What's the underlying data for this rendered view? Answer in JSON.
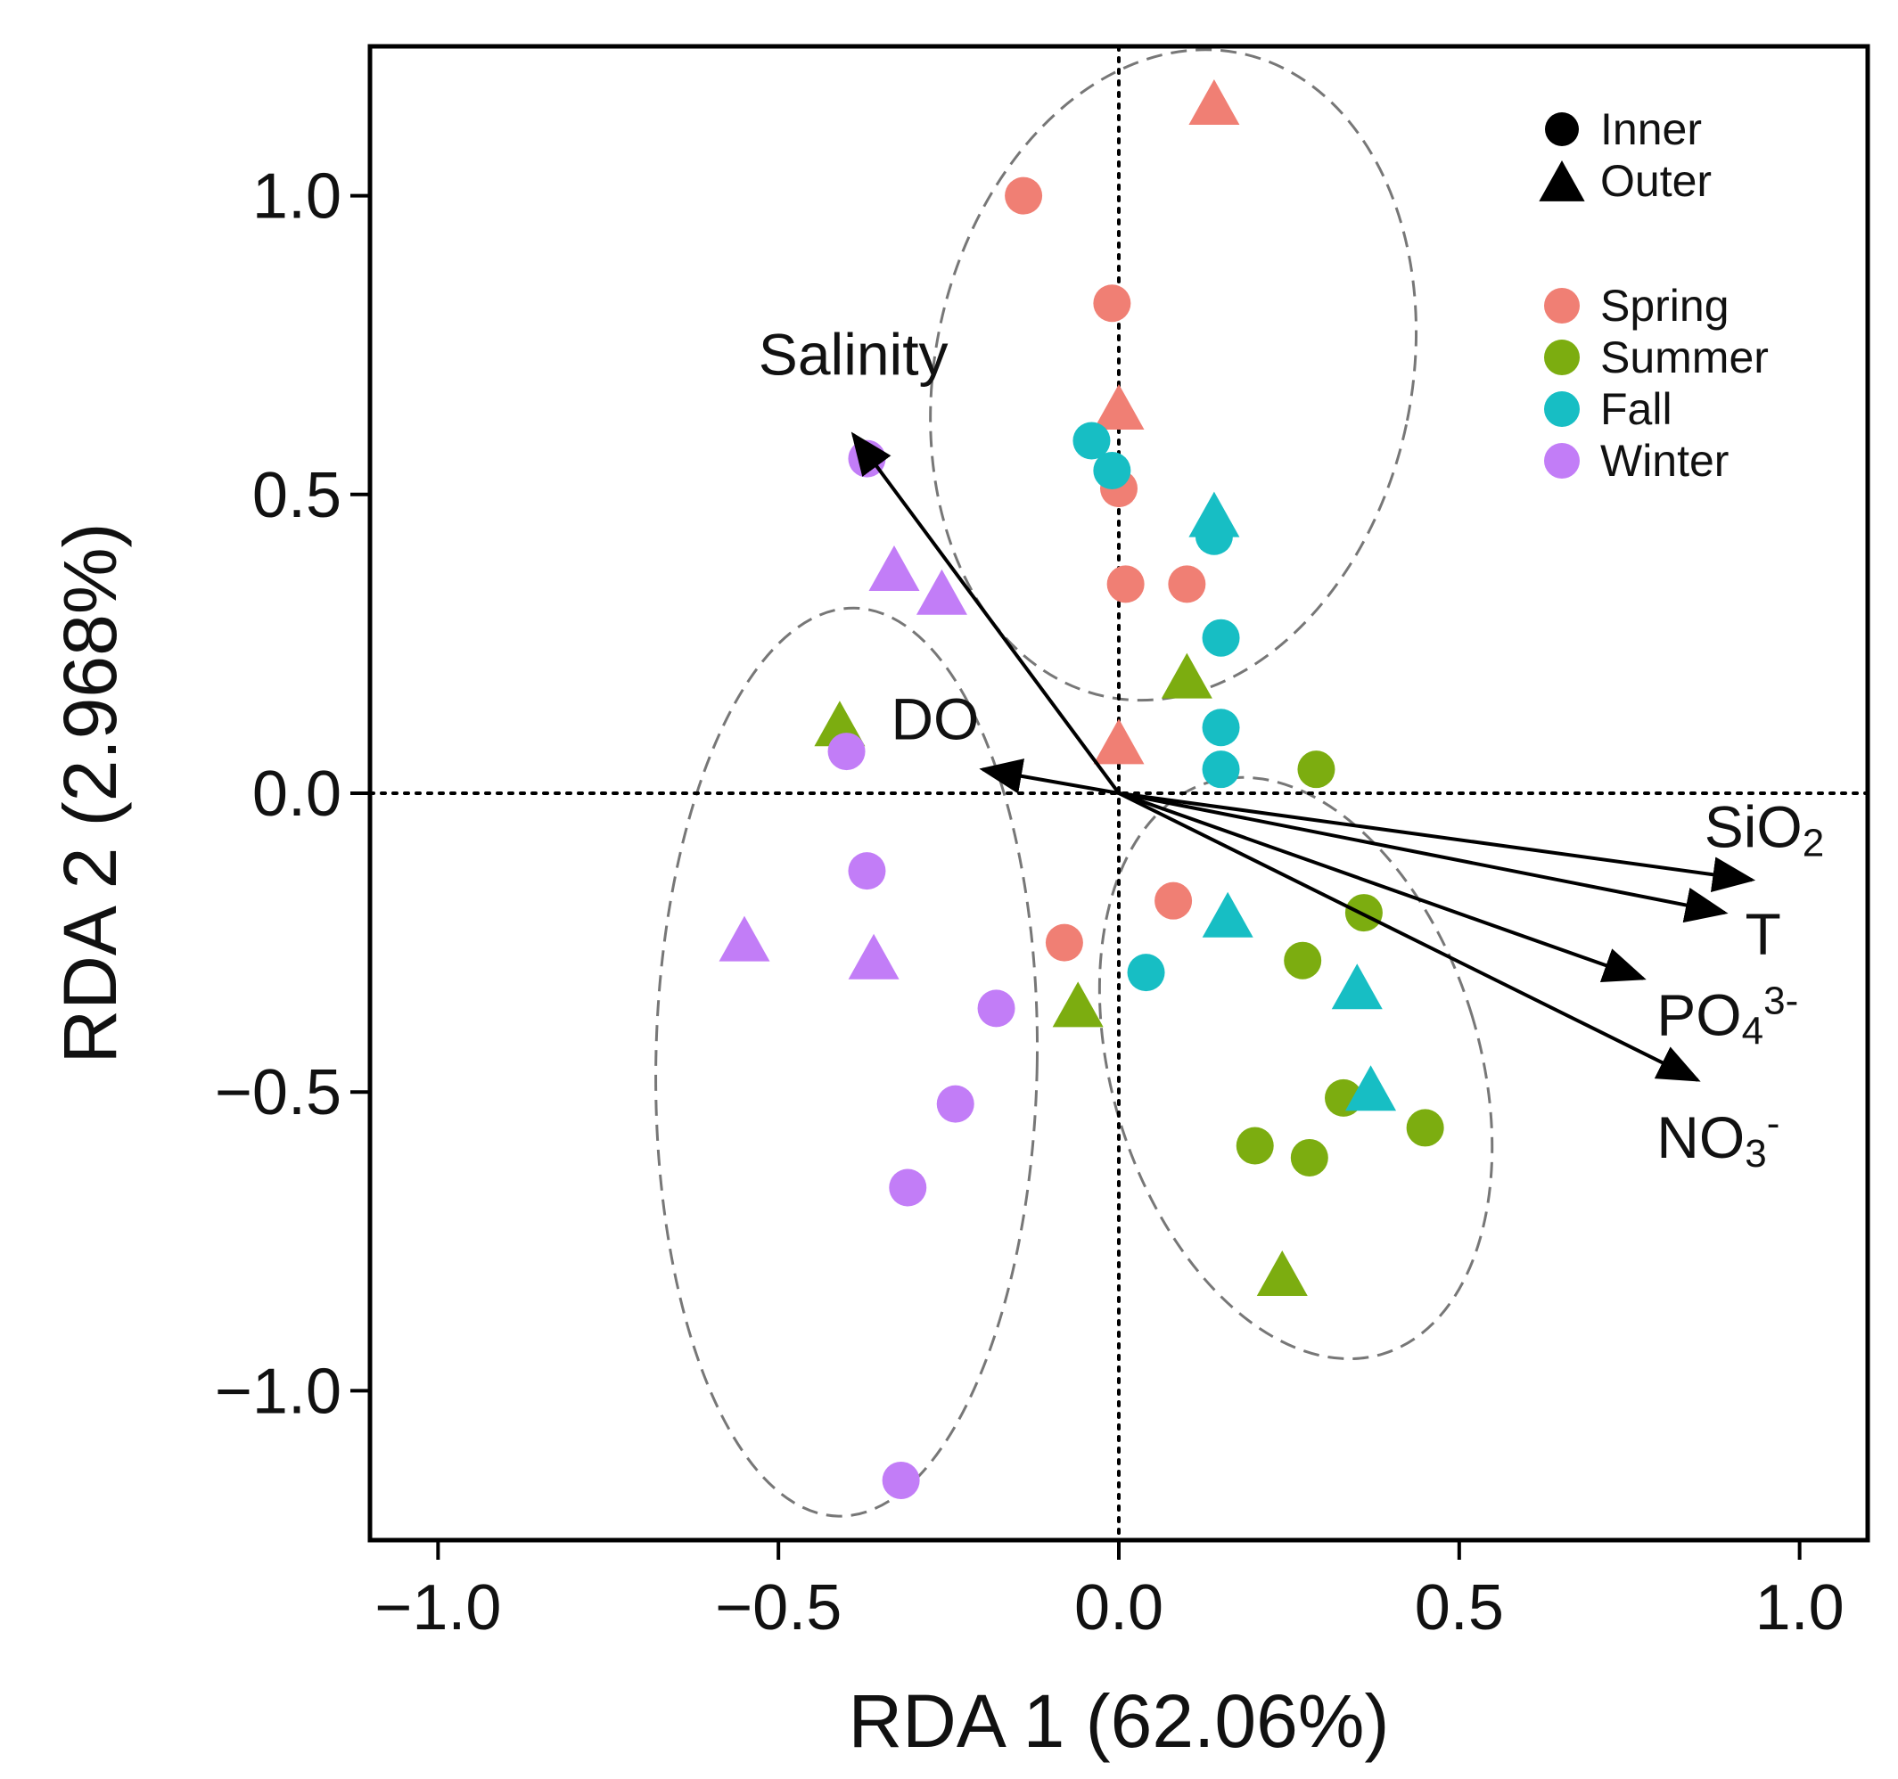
{
  "chart_data": {
    "type": "scatter",
    "title": "",
    "xlabel": "RDA 1 (62.06%)",
    "ylabel": "RDA 2 (2.968%)",
    "xlim": [
      -1.1,
      1.1
    ],
    "ylim": [
      -1.25,
      1.25
    ],
    "xticks": [
      -1.0,
      -0.5,
      0.0,
      0.5,
      1.0
    ],
    "yticks": [
      -1.0,
      -0.5,
      0.0,
      0.5,
      1.0
    ],
    "xtick_labels": [
      "−1.0",
      "−0.5",
      "0.0",
      "0.5",
      "1.0"
    ],
    "ytick_labels": [
      "−1.0",
      "−0.5",
      "0.0",
      "0.5",
      "1.0"
    ],
    "grid": false,
    "legend_placement": "top-right",
    "shape_legend": [
      {
        "label": "Inner",
        "shape": "circle"
      },
      {
        "label": "Outer",
        "shape": "triangle"
      }
    ],
    "season_legend": [
      {
        "label": "Spring",
        "color": "#F07F74"
      },
      {
        "label": "Summer",
        "color": "#7CAD10"
      },
      {
        "label": "Fall",
        "color": "#17BEC4"
      },
      {
        "label": "Winter",
        "color": "#C27DF7"
      }
    ],
    "points": [
      {
        "season": "Spring",
        "site": "Inner",
        "x": -0.14,
        "y": 1.0
      },
      {
        "season": "Spring",
        "site": "Inner",
        "x": -0.01,
        "y": 0.82
      },
      {
        "season": "Spring",
        "site": "Inner",
        "x": 0.0,
        "y": 0.51
      },
      {
        "season": "Spring",
        "site": "Inner",
        "x": 0.01,
        "y": 0.35
      },
      {
        "season": "Spring",
        "site": "Inner",
        "x": 0.1,
        "y": 0.35
      },
      {
        "season": "Spring",
        "site": "Inner",
        "x": 0.08,
        "y": -0.18
      },
      {
        "season": "Spring",
        "site": "Inner",
        "x": -0.08,
        "y": -0.25
      },
      {
        "season": "Spring",
        "site": "Outer",
        "x": 0.14,
        "y": 1.15
      },
      {
        "season": "Spring",
        "site": "Outer",
        "x": 0.0,
        "y": 0.64
      },
      {
        "season": "Spring",
        "site": "Outer",
        "x": 0.0,
        "y": 0.08
      },
      {
        "season": "Summer",
        "site": "Inner",
        "x": 0.29,
        "y": 0.04
      },
      {
        "season": "Summer",
        "site": "Inner",
        "x": 0.36,
        "y": -0.2
      },
      {
        "season": "Summer",
        "site": "Inner",
        "x": 0.27,
        "y": -0.28
      },
      {
        "season": "Summer",
        "site": "Inner",
        "x": 0.33,
        "y": -0.51
      },
      {
        "season": "Summer",
        "site": "Inner",
        "x": 0.45,
        "y": -0.56
      },
      {
        "season": "Summer",
        "site": "Inner",
        "x": 0.2,
        "y": -0.59
      },
      {
        "season": "Summer",
        "site": "Inner",
        "x": 0.28,
        "y": -0.61
      },
      {
        "season": "Summer",
        "site": "Outer",
        "x": 0.1,
        "y": 0.19
      },
      {
        "season": "Summer",
        "site": "Outer",
        "x": -0.41,
        "y": 0.11
      },
      {
        "season": "Summer",
        "site": "Outer",
        "x": -0.06,
        "y": -0.36
      },
      {
        "season": "Summer",
        "site": "Outer",
        "x": 0.24,
        "y": -0.81
      },
      {
        "season": "Fall",
        "site": "Inner",
        "x": -0.04,
        "y": 0.59
      },
      {
        "season": "Fall",
        "site": "Inner",
        "x": -0.01,
        "y": 0.54
      },
      {
        "season": "Fall",
        "site": "Inner",
        "x": 0.14,
        "y": 0.43
      },
      {
        "season": "Fall",
        "site": "Inner",
        "x": 0.15,
        "y": 0.26
      },
      {
        "season": "Fall",
        "site": "Inner",
        "x": 0.15,
        "y": 0.11
      },
      {
        "season": "Fall",
        "site": "Inner",
        "x": 0.15,
        "y": 0.04
      },
      {
        "season": "Fall",
        "site": "Inner",
        "x": 0.04,
        "y": -0.3
      },
      {
        "season": "Fall",
        "site": "Outer",
        "x": 0.14,
        "y": 0.46
      },
      {
        "season": "Fall",
        "site": "Outer",
        "x": 0.16,
        "y": -0.21
      },
      {
        "season": "Fall",
        "site": "Outer",
        "x": 0.35,
        "y": -0.33
      },
      {
        "season": "Fall",
        "site": "Outer",
        "x": 0.37,
        "y": -0.5
      },
      {
        "season": "Winter",
        "site": "Inner",
        "x": -0.37,
        "y": 0.56
      },
      {
        "season": "Winter",
        "site": "Inner",
        "x": -0.4,
        "y": 0.07
      },
      {
        "season": "Winter",
        "site": "Inner",
        "x": -0.37,
        "y": -0.13
      },
      {
        "season": "Winter",
        "site": "Inner",
        "x": -0.18,
        "y": -0.36
      },
      {
        "season": "Winter",
        "site": "Inner",
        "x": -0.24,
        "y": -0.52
      },
      {
        "season": "Winter",
        "site": "Inner",
        "x": -0.31,
        "y": -0.66
      },
      {
        "season": "Winter",
        "site": "Inner",
        "x": -0.32,
        "y": -1.15
      },
      {
        "season": "Winter",
        "site": "Outer",
        "x": -0.33,
        "y": 0.37
      },
      {
        "season": "Winter",
        "site": "Outer",
        "x": -0.26,
        "y": 0.33
      },
      {
        "season": "Winter",
        "site": "Outer",
        "x": -0.55,
        "y": -0.25
      },
      {
        "season": "Winter",
        "site": "Outer",
        "x": -0.36,
        "y": -0.28
      }
    ],
    "arrows": [
      {
        "label": "Salinity",
        "sub": "",
        "sup": "",
        "x": -0.39,
        "y": 0.6
      },
      {
        "label": "DO",
        "sub": "",
        "sup": "",
        "x": -0.2,
        "y": 0.04
      },
      {
        "label": "SiO",
        "sub": "2",
        "sup": "",
        "x": 0.93,
        "y": -0.145
      },
      {
        "label": "T",
        "sub": "",
        "sup": "",
        "x": 0.89,
        "y": -0.2
      },
      {
        "label": "PO",
        "sub": "4",
        "sup": "3-",
        "x": 0.77,
        "y": -0.31
      },
      {
        "label": "NO",
        "sub": "3",
        "sup": "-",
        "x": 0.85,
        "y": -0.48
      }
    ],
    "ellipses": [
      {
        "group": "Spring/Fall",
        "cx": 0.08,
        "cy": 0.7,
        "rx": 0.35,
        "ry": 0.55,
        "rotate_deg": 12
      },
      {
        "group": "Winter",
        "cx": -0.4,
        "cy": -0.45,
        "rx": 0.28,
        "ry": 0.76,
        "rotate_deg": 1
      },
      {
        "group": "Summer",
        "cx": 0.26,
        "cy": -0.46,
        "rx": 0.27,
        "ry": 0.5,
        "rotate_deg": -17
      }
    ]
  }
}
